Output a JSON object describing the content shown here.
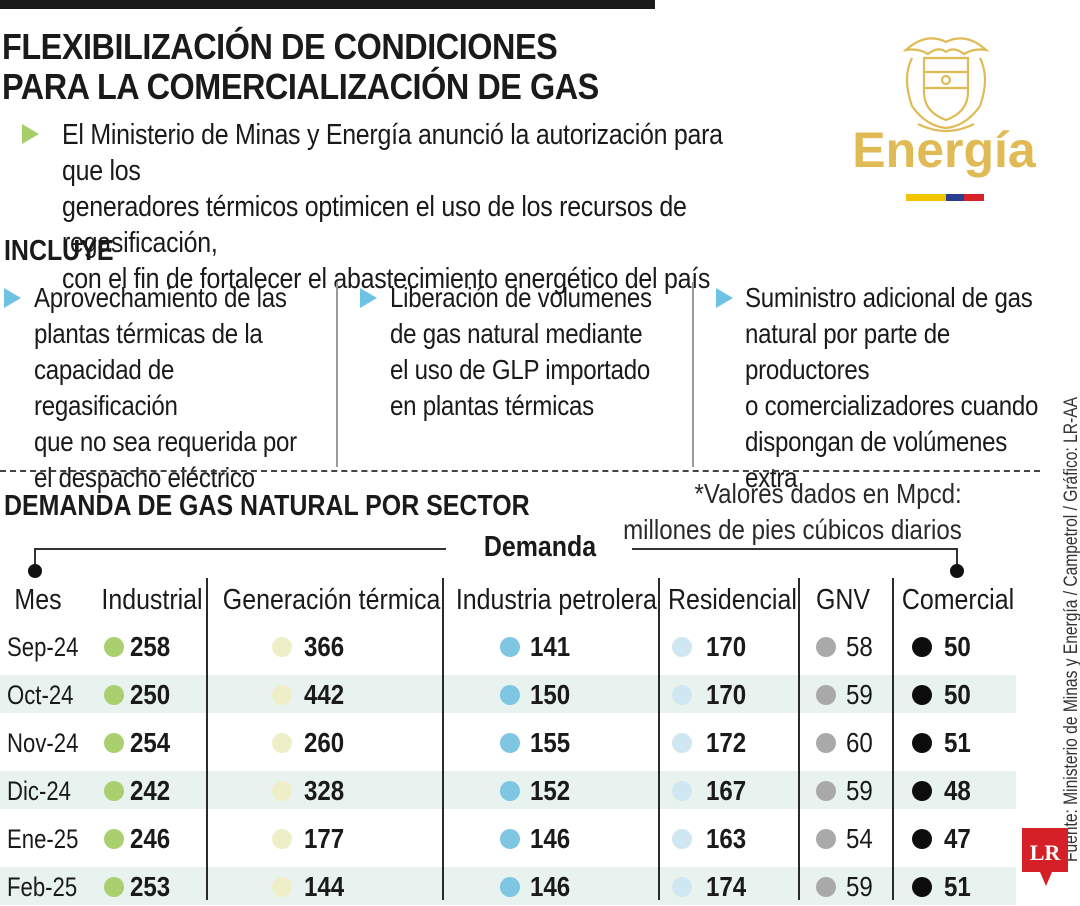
{
  "header": {
    "title_line1": "FLEXIBILIZACIÓN DE CONDICIONES",
    "title_line2": "PARA LA COMERCIALIZACIÓN DE GAS",
    "intro_line1": "El Ministerio de Minas y Energía anunció la autorización para que los",
    "intro_line2": "generadores térmicos optimicen el uso de los recursos de regasificación,",
    "intro_line3": "con el fin de fortalecer el abastecimiento energético del país"
  },
  "logo": {
    "word": "Energía",
    "gold_color": "#e0bb55",
    "flag_colors": [
      "#f2c500",
      "#2a3f8f",
      "#d8232a"
    ]
  },
  "incluye": {
    "heading": "INCLUYE",
    "items": [
      {
        "lines": [
          "Aprovechamiento de las",
          "plantas térmicas de la",
          "capacidad de regasificación",
          "que no sea requerida por",
          "el despacho eléctrico"
        ]
      },
      {
        "lines": [
          "Liberación de volumenes",
          "de gas natural mediante",
          "el uso de GLP importado",
          "en plantas térmicas"
        ]
      },
      {
        "lines": [
          "Suministro adicional de gas",
          "natural por parte de productores",
          "o comercializadores cuando",
          "dispongan de volúmenes extra"
        ]
      }
    ]
  },
  "demanda": {
    "heading": "DEMANDA DE GAS NATURAL POR SECTOR",
    "note_line1": "*Valores dados en Mpcd:",
    "note_line2": "millones de pies cúbicos diarios",
    "group_label": "Demanda",
    "columns": [
      "Mes",
      "Industrial",
      "Generación térmica",
      "Industria petrolera",
      "Residencial",
      "GNV",
      "Comercial"
    ],
    "sector_colors": [
      "#a9cf6e",
      "#eeefc6",
      "#7fc6e3",
      "#cfe7f1",
      "#a9a9a9",
      "#0d0d0d"
    ],
    "rows": [
      {
        "mes": "Sep-24",
        "values": [
          "258",
          "366",
          "141",
          "170",
          "58",
          "50"
        ]
      },
      {
        "mes": "Oct-24",
        "values": [
          "250",
          "442",
          "150",
          "170",
          "59",
          "50"
        ]
      },
      {
        "mes": "Nov-24",
        "values": [
          "254",
          "260",
          "155",
          "172",
          "60",
          "51"
        ]
      },
      {
        "mes": "Dic-24",
        "values": [
          "242",
          "328",
          "152",
          "167",
          "59",
          "48"
        ]
      },
      {
        "mes": "Ene-25",
        "values": [
          "246",
          "177",
          "146",
          "163",
          "54",
          "47"
        ]
      },
      {
        "mes": "Feb-25",
        "values": [
          "253",
          "144",
          "146",
          "174",
          "59",
          "51"
        ]
      }
    ]
  },
  "footer": {
    "source": "Fuente: Ministerio de Minas y Energía / Campetrol / Gráfico: LR-AA",
    "brand": "LR",
    "brand_color": "#d62027"
  }
}
